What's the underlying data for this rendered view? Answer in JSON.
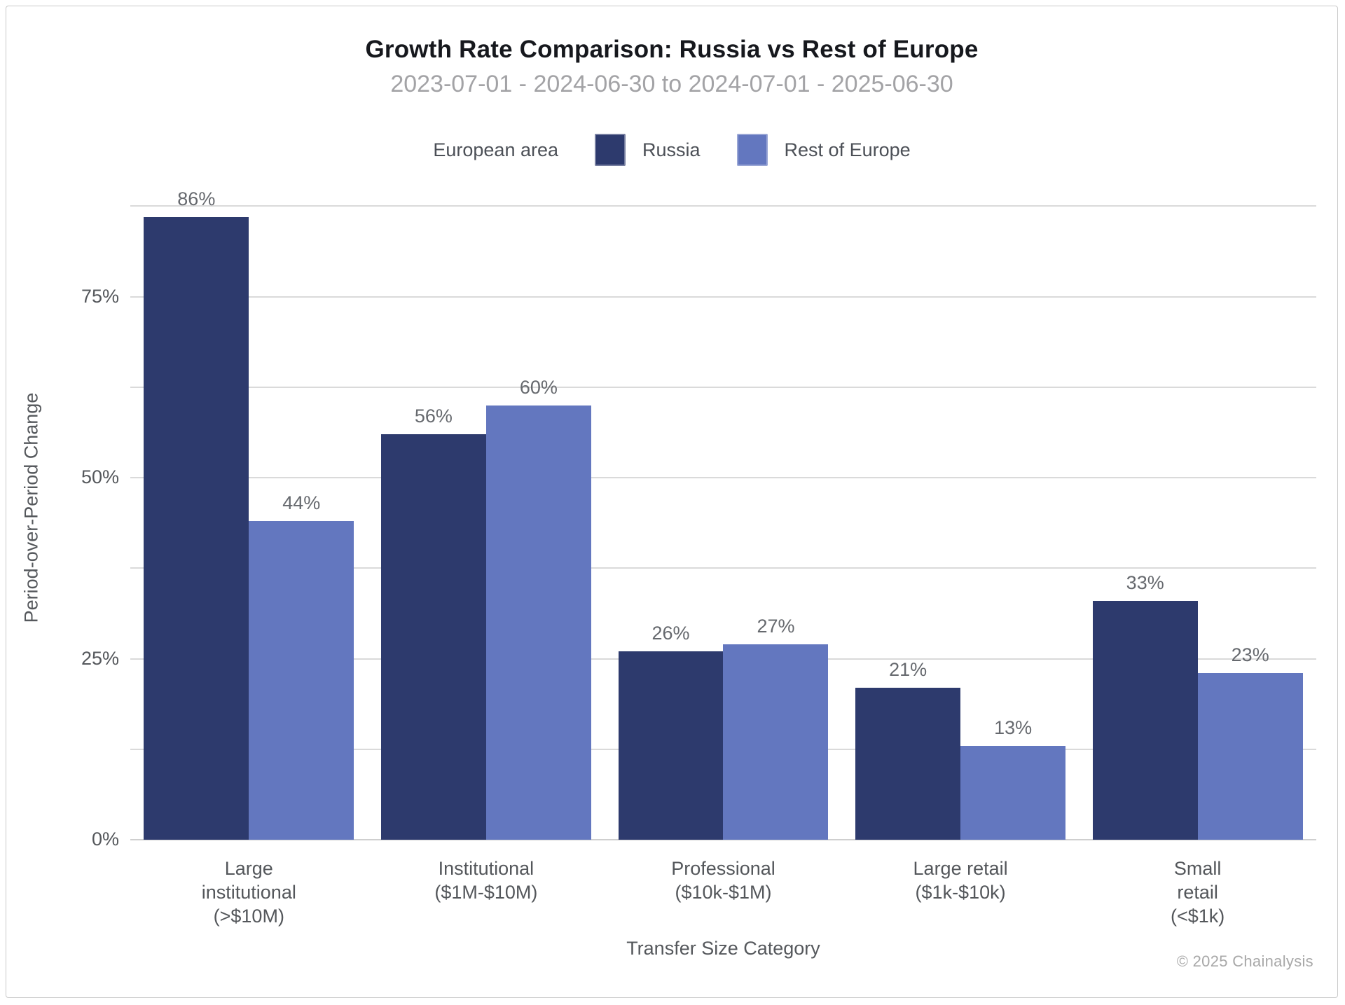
{
  "header": {
    "title": "Growth Rate Comparison: Russia vs Rest of Europe",
    "subtitle": "2023-07-01 - 2024-06-30 to 2024-07-01 - 2025-06-30"
  },
  "legend": {
    "label": "European area",
    "items": [
      {
        "name": "Russia",
        "color": "#2d3a6d"
      },
      {
        "name": "Rest of Europe",
        "color": "#6377bf"
      }
    ]
  },
  "chart_data": {
    "type": "bar",
    "title": "Growth Rate Comparison: Russia vs Rest of Europe",
    "subtitle": "2023-07-01 - 2024-06-30 to 2024-07-01 - 2025-06-30",
    "xlabel": "Transfer Size Category",
    "ylabel": "Period-over-Period Change",
    "categories": [
      "Large institutional (>$10M)",
      "Institutional ($1M-$10M)",
      "Professional ($10k-$1M)",
      "Large retail ($1k-$10k)",
      "Small retail (<$1k)"
    ],
    "category_lines": [
      [
        "Large",
        "institutional",
        "(>$10M)"
      ],
      [
        "Institutional",
        "($1M-$10M)"
      ],
      [
        "Professional",
        "($10k-$1M)"
      ],
      [
        "Large retail",
        "($1k-$10k)"
      ],
      [
        "Small",
        "retail",
        "(<$1k)"
      ]
    ],
    "series": [
      {
        "name": "Russia",
        "color": "#2d3a6d",
        "values": [
          86,
          56,
          26,
          21,
          33
        ]
      },
      {
        "name": "Rest of Europe",
        "color": "#6377bf",
        "values": [
          44,
          60,
          27,
          13,
          23
        ]
      }
    ],
    "value_suffix": "%",
    "ylim": [
      0,
      91.7
    ],
    "yticks": [
      0,
      25,
      50,
      75
    ],
    "gridlines": [
      12.5,
      25,
      37.5,
      50,
      62.5,
      75,
      87.5
    ],
    "grid": "on",
    "legend_position": "top-center",
    "colors": {
      "gridline": "#dadada",
      "baseline": "#cfcfcf",
      "title_text": "#16181d",
      "subtitle_text": "#a3a3a6",
      "axis_text": "#55585c",
      "value_label_text": "#66696e"
    }
  },
  "footer": {
    "copyright": "© 2025 Chainalysis"
  }
}
